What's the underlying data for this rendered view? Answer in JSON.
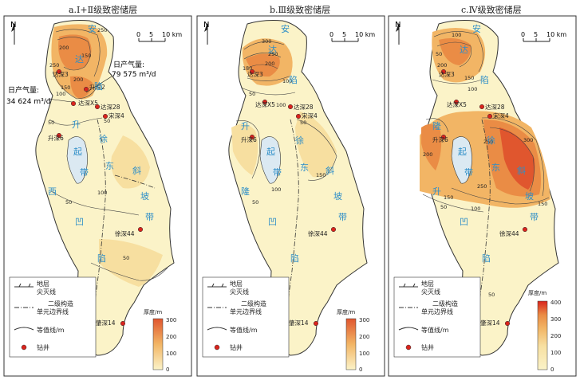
{
  "panels": [
    {
      "title": "a.Ⅰ+Ⅱ级致密储层",
      "scale": {
        "zero": "0",
        "mid": "5",
        "end": "10 km"
      },
      "north": "N",
      "annotation_1": {
        "line1": "日产气量:",
        "line2": "79 575 m³/d"
      },
      "annotation_2": {
        "line1": "日产气量:",
        "line2": "34 624 m³/d"
      },
      "contours": [
        "250",
        "200",
        "150",
        "250",
        "200",
        "150",
        "100",
        "50",
        "50",
        "50",
        "100",
        "50"
      ],
      "wells": [
        "达深3",
        "升深2",
        "达深X5",
        "达深28",
        "宋深4",
        "升深6",
        "徐深44",
        "肇深14"
      ],
      "region_labels": [
        "安",
        "达",
        "陷",
        "徐",
        "东",
        "斜",
        "起",
        "带",
        "西",
        "凹",
        "陷",
        "坡",
        "带",
        "升"
      ],
      "legend": {
        "pinchout_label_1": "地层",
        "pinchout_label_2": "尖灭线",
        "boundary_label_1": "二级构造",
        "boundary_label_2": "单元边界线",
        "contour_label": "等值线/m",
        "well_label": "钻井",
        "colorbar_title": "厚度/m",
        "ticks": [
          "300",
          "200",
          "100",
          "0"
        ]
      }
    },
    {
      "title": "b.Ⅲ级致密储层",
      "scale": {
        "zero": "0",
        "mid": "5",
        "end": "10 km"
      },
      "north": "N",
      "contours": [
        "300",
        "250",
        "200",
        "150",
        "100",
        "50",
        "100",
        "50",
        "100",
        "50",
        "150"
      ],
      "wells": [
        "达深3",
        "达深X5",
        "达深28",
        "宋深4",
        "升深6",
        "徐深44",
        "肇深14"
      ],
      "region_labels": [
        "安",
        "达",
        "陷",
        "徐",
        "东",
        "斜",
        "起",
        "带",
        "隆",
        "凹",
        "陷",
        "坡",
        "带",
        "升"
      ],
      "legend": {
        "pinchout_label_1": "地层",
        "pinchout_label_2": "尖灭线",
        "boundary_label_1": "二级构造",
        "boundary_label_2": "单元边界线",
        "contour_label": "等值线/m",
        "well_label": "钻井",
        "colorbar_title": "厚度/m",
        "ticks": [
          "300",
          "200",
          "100",
          "0"
        ]
      }
    },
    {
      "title": "c.Ⅳ级致密储层",
      "scale": {
        "zero": "0",
        "mid": "5",
        "end": "10 km"
      },
      "north": "N",
      "contours": [
        "100",
        "50",
        "200",
        "150",
        "100",
        "200",
        "250",
        "300",
        "150",
        "250",
        "50",
        "100",
        "150",
        "50"
      ],
      "wells": [
        "达深3",
        "达深X5",
        "达深28",
        "宋深4",
        "升深6",
        "徐深44",
        "肇深14"
      ],
      "region_labels": [
        "安",
        "达",
        "陷",
        "徐",
        "东",
        "斜",
        "隆",
        "起",
        "带",
        "凹",
        "陷",
        "坡",
        "带",
        "升"
      ],
      "legend": {
        "pinchout_label_1": "地层",
        "pinchout_label_2": "尖灭线",
        "boundary_label_1": "二级构造",
        "boundary_label_2": "单元边界线",
        "contour_label": "等值线/m",
        "well_label": "钻井",
        "colorbar_title": "厚度/m",
        "ticks": [
          "400",
          "300",
          "200",
          "100",
          "0"
        ]
      }
    }
  ],
  "colors": {
    "base": "#fbf3c8",
    "light": "#f7dfa0",
    "medium": "#f2b565",
    "orange": "#ea8c45",
    "deep": "#e0562e",
    "well": "#d9241d",
    "label_blue": "#2f8fc8",
    "frame": "#333333"
  }
}
